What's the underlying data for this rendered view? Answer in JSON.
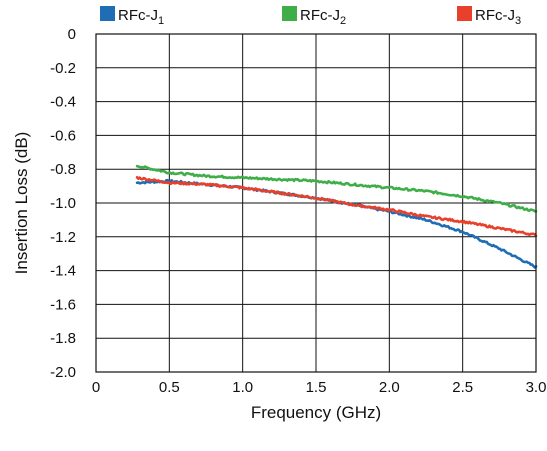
{
  "chart_data": {
    "type": "line",
    "title": "",
    "xlabel": "Frequency (GHz)",
    "ylabel": "Insertion Loss (dB)",
    "xlim": [
      0,
      3.0
    ],
    "ylim": [
      -2.0,
      0
    ],
    "grid": true,
    "legend_position": "top",
    "x_ticks": [
      0,
      0.5,
      1.0,
      1.5,
      2.0,
      2.5,
      3.0
    ],
    "x_tick_labels": [
      "0",
      "0.5",
      "1.0",
      "1.5",
      "2.0",
      "2.5",
      "3.0"
    ],
    "y_ticks": [
      0,
      -0.2,
      -0.4,
      -0.6,
      -0.8,
      -1.0,
      -1.2,
      -1.4,
      -1.6,
      -1.8,
      -2.0
    ],
    "y_tick_labels": [
      "0",
      "-0.2",
      "-0.4",
      "-0.6",
      "-0.8",
      "-1.0",
      "-1.2",
      "-1.4",
      "-1.6",
      "-1.8",
      "-2.0"
    ],
    "series": [
      {
        "name": "RFc-J",
        "subscript": "1",
        "color": "#1f6db5",
        "x": [
          0.28,
          0.5,
          0.75,
          1.0,
          1.25,
          1.5,
          1.75,
          2.0,
          2.25,
          2.5,
          2.75,
          3.0
        ],
        "y": [
          -0.88,
          -0.87,
          -0.89,
          -0.91,
          -0.94,
          -0.97,
          -1.01,
          -1.05,
          -1.1,
          -1.17,
          -1.27,
          -1.38
        ]
      },
      {
        "name": "RFc-J",
        "subscript": "2",
        "color": "#3fae49",
        "x": [
          0.28,
          0.5,
          0.75,
          1.0,
          1.25,
          1.5,
          1.75,
          2.0,
          2.25,
          2.5,
          2.75,
          3.0
        ],
        "y": [
          -0.78,
          -0.82,
          -0.84,
          -0.85,
          -0.86,
          -0.87,
          -0.89,
          -0.91,
          -0.93,
          -0.96,
          -1.0,
          -1.05
        ]
      },
      {
        "name": "RFc-J",
        "subscript": "3",
        "color": "#e8402a",
        "x": [
          0.28,
          0.5,
          0.75,
          1.0,
          1.25,
          1.5,
          1.75,
          2.0,
          2.25,
          2.5,
          2.75,
          3.0
        ],
        "y": [
          -0.85,
          -0.88,
          -0.89,
          -0.91,
          -0.94,
          -0.97,
          -1.01,
          -1.04,
          -1.08,
          -1.11,
          -1.15,
          -1.19
        ]
      }
    ]
  }
}
